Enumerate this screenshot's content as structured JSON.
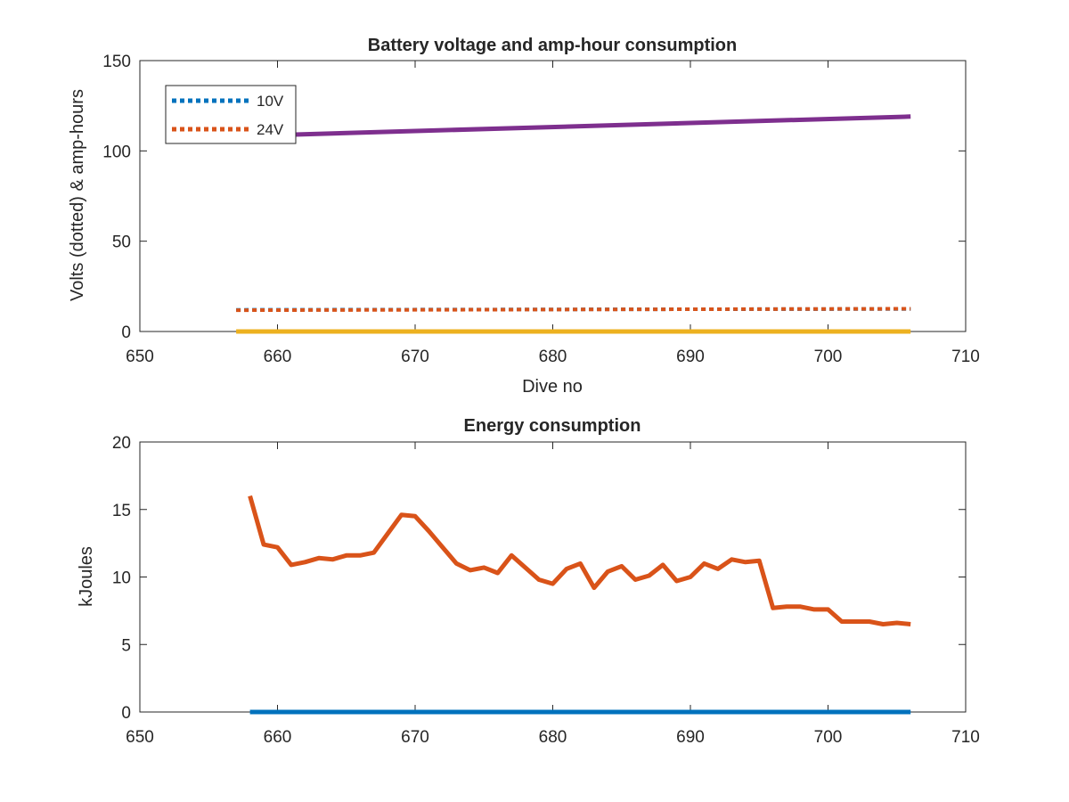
{
  "chart_data": [
    {
      "type": "line",
      "title": "Battery voltage and amp-hour consumption",
      "xlabel": "Dive no",
      "ylabel": "Volts (dotted) & amp-hours",
      "xlim": [
        650,
        710
      ],
      "ylim": [
        0,
        150
      ],
      "xticks": [
        650,
        660,
        670,
        680,
        690,
        700,
        710
      ],
      "yticks": [
        0,
        50,
        100,
        150
      ],
      "grid": false,
      "legend_position": "top-left",
      "series": [
        {
          "name": "10V",
          "style": "dotted",
          "color": "#0072BD",
          "x": [
            657,
            706
          ],
          "y": [
            12,
            12.5
          ]
        },
        {
          "name": "24V",
          "style": "dotted",
          "color": "#D95319",
          "x": [
            657,
            706
          ],
          "y": [
            11.8,
            12.6
          ]
        },
        {
          "style": "solid",
          "color": "#7E2F8E",
          "x": [
            661,
            706
          ],
          "y": [
            109,
            119
          ]
        },
        {
          "style": "solid",
          "color": "#EDB120",
          "x": [
            657,
            706
          ],
          "y": [
            0,
            0
          ]
        }
      ]
    },
    {
      "type": "line",
      "title": "Energy consumption",
      "xlabel": "",
      "ylabel": "kJoules",
      "xlim": [
        650,
        710
      ],
      "ylim": [
        0,
        20
      ],
      "xticks": [
        650,
        660,
        670,
        680,
        690,
        700,
        710
      ],
      "yticks": [
        0,
        5,
        10,
        15,
        20
      ],
      "grid": false,
      "series": [
        {
          "style": "solid",
          "color": "#D95319",
          "x": [
            658,
            659,
            660,
            661,
            662,
            663,
            664,
            665,
            666,
            667,
            668,
            669,
            670,
            671,
            672,
            673,
            674,
            675,
            676,
            677,
            678,
            679,
            680,
            681,
            682,
            683,
            684,
            685,
            686,
            687,
            688,
            689,
            690,
            691,
            692,
            693,
            694,
            695,
            696,
            697,
            698,
            699,
            700,
            701,
            702,
            703,
            704,
            705,
            706
          ],
          "y": [
            16,
            12.4,
            12.2,
            10.9,
            11.1,
            11.4,
            11.3,
            11.6,
            11.6,
            11.8,
            13.2,
            14.6,
            14.5,
            13.4,
            12.2,
            11.0,
            10.5,
            10.7,
            10.3,
            11.6,
            10.7,
            9.8,
            9.5,
            10.6,
            11.0,
            9.2,
            10.4,
            10.8,
            9.8,
            10.1,
            10.9,
            9.7,
            10.0,
            11.0,
            10.6,
            11.3,
            11.1,
            11.2,
            7.7,
            7.8,
            7.8,
            7.6,
            7.6,
            6.7,
            6.7,
            6.7,
            6.5,
            6.6,
            6.5
          ]
        },
        {
          "style": "solid",
          "color": "#0072BD",
          "x": [
            658,
            706
          ],
          "y": [
            0,
            0
          ]
        }
      ]
    }
  ]
}
